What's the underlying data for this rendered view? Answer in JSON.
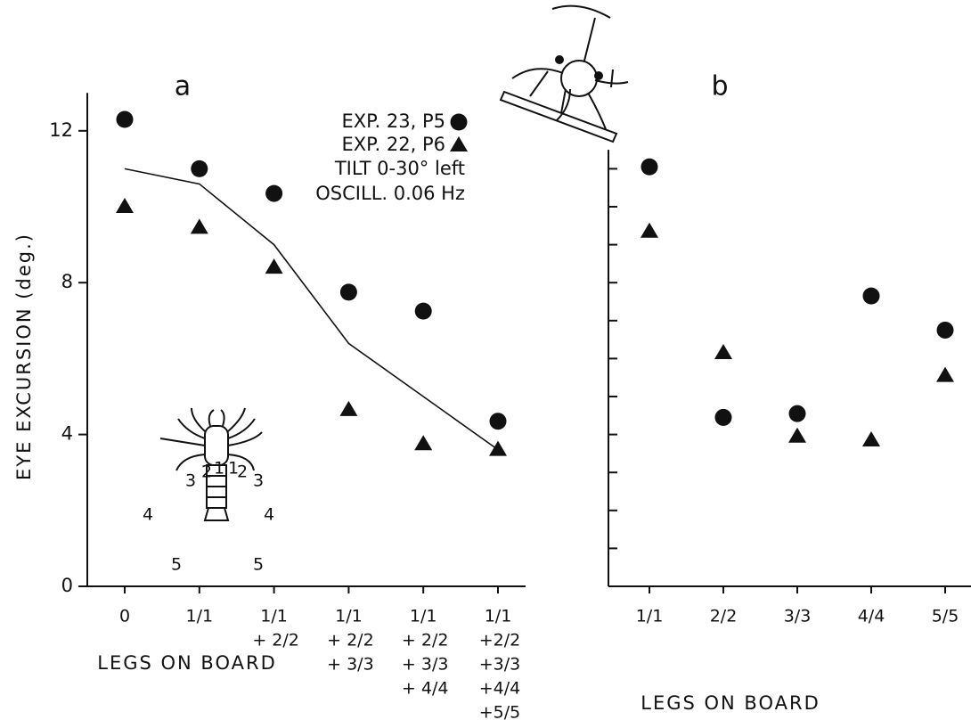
{
  "chart_data": [
    {
      "type": "scatter",
      "panel_label": "a",
      "y_label": "EYE EXCURSION  (deg.)",
      "x_label": "LEGS ON BOARD",
      "categories": [
        [
          "0"
        ],
        [
          "1/1"
        ],
        [
          "1/1",
          "+ 2/2"
        ],
        [
          "1/1",
          "+ 2/2",
          "+ 3/3"
        ],
        [
          "1/1",
          "+ 2/2",
          "+ 3/3",
          "+ 4/4"
        ],
        [
          "1/1",
          "+2/2",
          "+3/3",
          "+4/4",
          "+5/5"
        ]
      ],
      "series": [
        {
          "name": "EXP. 22, P6",
          "marker": "triangle",
          "color": "#111111",
          "values": [
            10.0,
            9.45,
            8.4,
            4.65,
            3.75,
            3.6
          ]
        },
        {
          "name": "EXP. 23, P5",
          "marker": "circle",
          "color": "#111111",
          "values": [
            12.3,
            11.0,
            10.35,
            7.75,
            7.25,
            4.35
          ]
        }
      ],
      "line": {
        "color": "#111111",
        "values": [
          11.0,
          10.6,
          9.0,
          6.4,
          5.0,
          3.6
        ]
      },
      "annotations": [
        "TILT 0-30° left",
        "OSCILL. 0.06 Hz"
      ],
      "inset_labels": [
        "3",
        "2",
        "1",
        "1",
        "2",
        "3",
        "4",
        "4",
        "5",
        "5"
      ],
      "ylim": [
        0,
        13
      ],
      "yticks": [
        0,
        4,
        8,
        12
      ]
    },
    {
      "type": "scatter",
      "panel_label": "b",
      "x_label": "LEGS ON BOARD",
      "categories": [
        [
          "1/1"
        ],
        [
          "2/2"
        ],
        [
          "3/3"
        ],
        [
          "4/4"
        ],
        [
          "5/5"
        ]
      ],
      "series": [
        {
          "marker": "triangle",
          "color": "#111111",
          "values": [
            9.35,
            6.15,
            3.95,
            3.85,
            5.55
          ]
        },
        {
          "marker": "circle",
          "color": "#111111",
          "values": [
            11.05,
            4.45,
            4.55,
            7.65,
            6.75
          ]
        }
      ],
      "ylim": [
        0,
        11.5
      ],
      "minor_yticks": [
        1,
        2,
        3,
        4,
        5,
        6,
        7,
        8,
        9,
        10,
        11
      ]
    }
  ]
}
